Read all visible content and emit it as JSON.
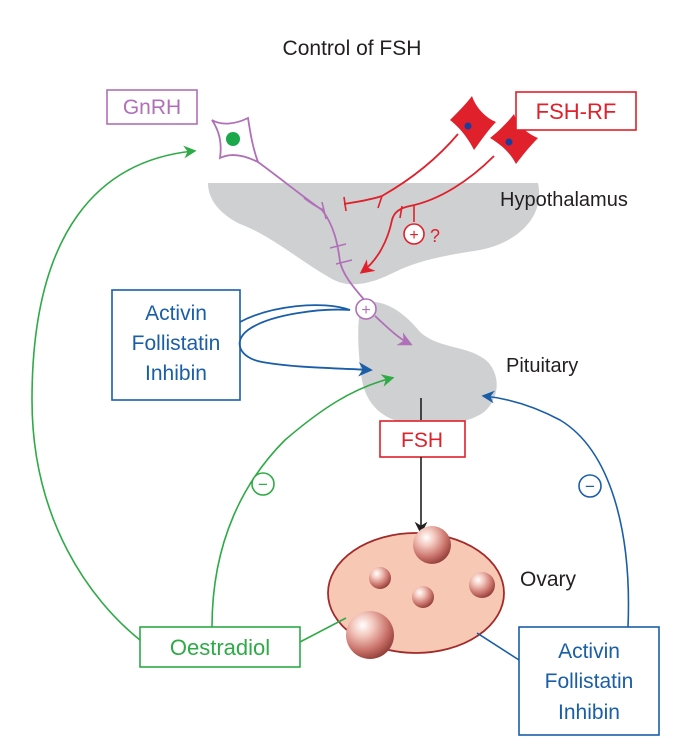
{
  "title": "Control of FSH",
  "labels": {
    "gnrh": "GnRH",
    "fsh_rf": "FSH-RF",
    "hypothalamus": "Hypothalamus",
    "pituitary": "Pituitary",
    "fsh": "FSH",
    "ovary": "Ovary",
    "oestradiol": "Oestradiol",
    "question_mark": "?",
    "plus_sign": "+",
    "minus_sign": "−"
  },
  "pituitary_regulators": [
    "Activin",
    "Follistatin",
    "Inhibin"
  ],
  "ovarian_regulators": [
    "Activin",
    "Follistatin",
    "Inhibin"
  ],
  "colors": {
    "gnrh": "#b070b8",
    "fsh_rf": "#e0202a",
    "activin": "#1a5ea8",
    "oestradiol": "#2eaa46",
    "tissue": "#cfd0d2",
    "ovary": "#f7c8b4",
    "ovary_outline": "#a32a2a",
    "text": "#231f20"
  }
}
